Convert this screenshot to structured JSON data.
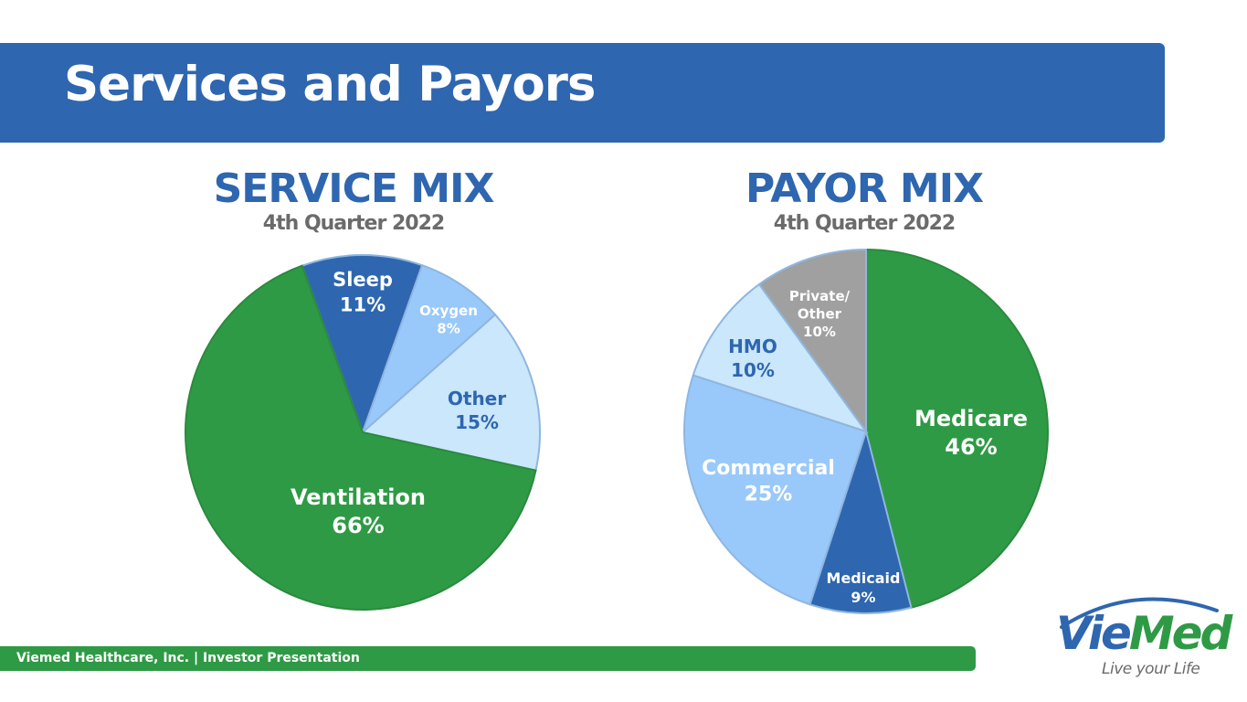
{
  "slide": {
    "title": "Services and Payors",
    "footer": "Viemed Healthcare, Inc. | Investor Presentation"
  },
  "logo": {
    "brand_part1": "Vie",
    "brand_part2": "Med",
    "tagline": "Live your Life"
  },
  "colors": {
    "brand_blue": "#2e66b0",
    "brand_green": "#2f9a45",
    "light_blue": "#99c9fa",
    "pale_blue": "#cae7fb",
    "gray": "#a0a0a0"
  },
  "chart_data": [
    {
      "type": "pie",
      "title": "SERVICE MIX",
      "subtitle": "4th Quarter 2022",
      "slices": [
        {
          "label": "Sleep",
          "value": 11,
          "display": "11%",
          "color": "#2e66b0",
          "text_color": "#ffffff"
        },
        {
          "label": "Oxygen",
          "value": 8,
          "display": "8%",
          "color": "#99c9fa",
          "text_color": "#ffffff"
        },
        {
          "label": "Other",
          "value": 15,
          "display": "15%",
          "color": "#cae7fb",
          "text_color": "#2e66b0"
        },
        {
          "label": "Ventilation",
          "value": 66,
          "display": "66%",
          "color": "#2f9a45",
          "text_color": "#ffffff"
        }
      ]
    },
    {
      "type": "pie",
      "title": "PAYOR MIX",
      "subtitle": "4th Quarter 2022",
      "slices": [
        {
          "label": "Medicare",
          "value": 46,
          "display": "46%",
          "color": "#2f9a45",
          "text_color": "#ffffff"
        },
        {
          "label": "Medicaid",
          "value": 9,
          "display": "9%",
          "color": "#2e66b0",
          "text_color": "#ffffff"
        },
        {
          "label": "Commercial",
          "value": 25,
          "display": "25%",
          "color": "#99c9fa",
          "text_color": "#ffffff"
        },
        {
          "label": "HMO",
          "value": 10,
          "display": "10%",
          "color": "#cae7fb",
          "text_color": "#2e66b0"
        },
        {
          "label": "Private/ Other",
          "value": 10,
          "display": "10%",
          "color": "#a0a0a0",
          "text_color": "#ffffff"
        }
      ]
    }
  ]
}
